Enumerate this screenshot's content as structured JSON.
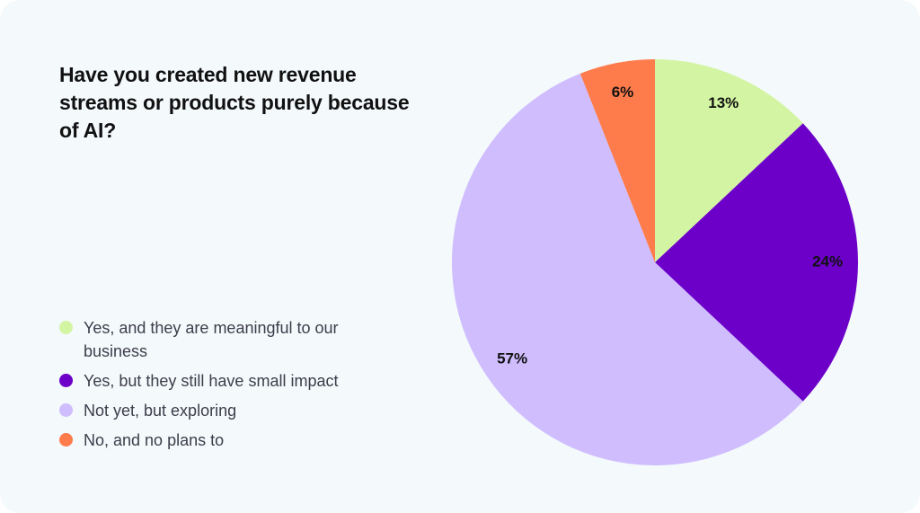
{
  "chart_data": {
    "type": "pie",
    "title": "Have you created new revenue streams or products purely because of AI?",
    "categories": [
      "Yes, and they are meaningful to our business",
      "Yes, but they still have small impact",
      "Not yet, but exploring",
      "No, and no plans to"
    ],
    "values": [
      13,
      24,
      57,
      6
    ],
    "value_labels": [
      "13%",
      "24%",
      "57%",
      "6%"
    ],
    "colors": [
      "#d3f5a3",
      "#6c00c9",
      "#cfbdfe",
      "#fe7c4c"
    ]
  }
}
